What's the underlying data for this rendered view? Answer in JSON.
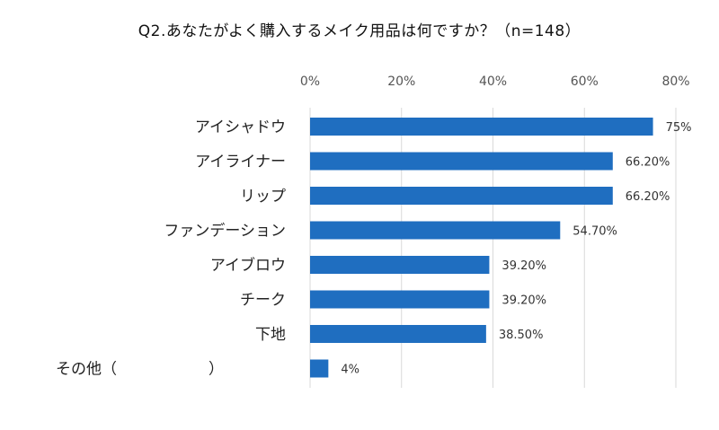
{
  "chart_data": {
    "type": "bar",
    "orientation": "horizontal",
    "title": "Q2.あなたがよく購入するメイク用品は何ですか？（n=148）",
    "categories": [
      "アイシャドウ",
      "アイライナー",
      "リップ",
      "ファンデーション",
      "アイブロウ",
      "チーク",
      "下地",
      "その他（　　　　　　）"
    ],
    "values": [
      75,
      66.2,
      66.2,
      54.7,
      39.2,
      39.2,
      38.5,
      4
    ],
    "data_labels": [
      "75%",
      "66.20%",
      "66.20%",
      "54.70%",
      "39.20%",
      "39.20%",
      "38.50%",
      "4%"
    ],
    "x_ticks": [
      "0%",
      "20%",
      "40%",
      "60%",
      "80%"
    ],
    "xlim": [
      0,
      80
    ],
    "tick_axis_position": "top",
    "grid": true,
    "legend": "none",
    "bar_color": "#1F6EC0",
    "gridline_color": "#D9D9D9"
  }
}
